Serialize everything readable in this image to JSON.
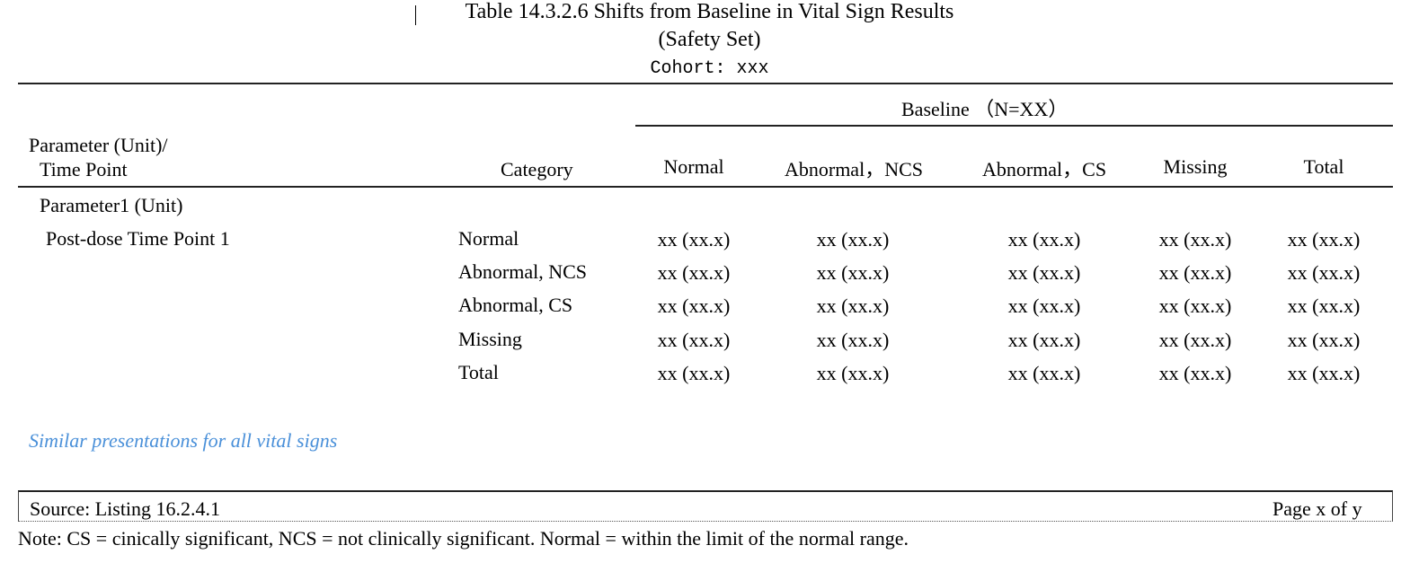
{
  "title": {
    "line1": "Table 14.3.2.6 Shifts from Baseline in Vital Sign Results",
    "line2": "(Safety Set)",
    "line3": "Cohort: xxx"
  },
  "header": {
    "param_line1": "Parameter (Unit)/",
    "param_line2": "Time Point",
    "category": "Category",
    "baseline_group": "Baseline （N=XX）",
    "columns": [
      "Normal",
      "Abnormal，NCS",
      "Abnormal，CS",
      "Missing",
      "Total"
    ]
  },
  "body": {
    "parameter": "Parameter1 (Unit)",
    "time_point": "Post-dose Time Point 1",
    "rows": [
      {
        "category": "Normal",
        "values": [
          "xx (xx.x)",
          "xx (xx.x)",
          "xx (xx.x)",
          "xx (xx.x)",
          "xx (xx.x)"
        ]
      },
      {
        "category": "Abnormal, NCS",
        "values": [
          "xx (xx.x)",
          "xx (xx.x)",
          "xx (xx.x)",
          "xx (xx.x)",
          "xx (xx.x)"
        ]
      },
      {
        "category": "Abnormal, CS",
        "values": [
          "xx (xx.x)",
          "xx (xx.x)",
          "xx (xx.x)",
          "xx (xx.x)",
          "xx (xx.x)"
        ]
      },
      {
        "category": "Missing",
        "values": [
          "xx (xx.x)",
          "xx (xx.x)",
          "xx (xx.x)",
          "xx (xx.x)",
          "xx (xx.x)"
        ]
      },
      {
        "category": "Total",
        "values": [
          "xx (xx.x)",
          "xx (xx.x)",
          "xx (xx.x)",
          "xx (xx.x)",
          "xx (xx.x)"
        ]
      }
    ]
  },
  "similar_note": "Similar presentations for all vital signs",
  "footer": {
    "source": "Source: Listing 16.2.4.1",
    "page": "Page x of y",
    "note": "Note: CS = cinically significant, NCS = not clinically significant. Normal = within the limit of the normal range."
  }
}
